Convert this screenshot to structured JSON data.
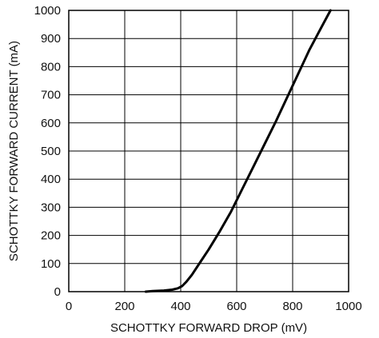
{
  "chart_data": {
    "type": "line",
    "title": "",
    "xlabel": "SCHOTTKY FORWARD DROP (mV)",
    "ylabel": "SCHOTTKY FORWARD CURRENT (mA)",
    "xlim": [
      0,
      1000
    ],
    "ylim": [
      0,
      1000
    ],
    "xticks": [
      0,
      200,
      400,
      600,
      800,
      1000
    ],
    "yticks": [
      0,
      100,
      200,
      300,
      400,
      500,
      600,
      700,
      800,
      900,
      1000
    ],
    "xtick_labels": [
      "0",
      "200",
      "400",
      "600",
      "800",
      "1000"
    ],
    "ytick_labels": [
      "0",
      "100",
      "200",
      "300",
      "400",
      "500",
      "600",
      "700",
      "800",
      "900",
      "1000"
    ],
    "grid": true,
    "line_color": "#000000",
    "series": [
      {
        "x": [
          275,
          300,
          340,
          370,
          390,
          405,
          420,
          440,
          470,
          500,
          540,
          580,
          620,
          660,
          700,
          740,
          780,
          820,
          860,
          900,
          935
        ],
        "y": [
          0,
          2,
          4,
          7,
          12,
          20,
          35,
          60,
          105,
          150,
          215,
          285,
          365,
          445,
          525,
          605,
          690,
          775,
          860,
          935,
          1000
        ]
      }
    ]
  }
}
